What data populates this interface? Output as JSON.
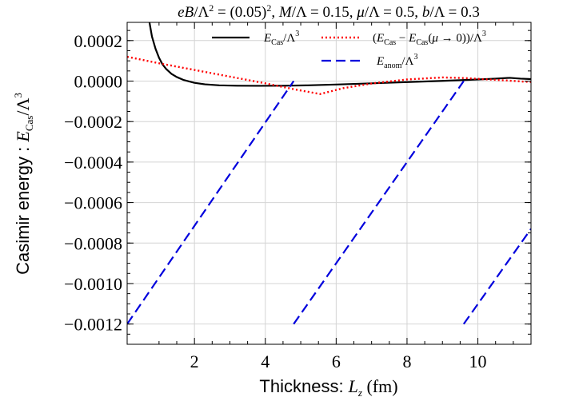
{
  "chart_data": {
    "type": "line",
    "title": "eB/Λ² = (0.05)², M/Λ = 0.15, μ/Λ = 0.5, b/Λ = 0.3",
    "xlabel": "Thickness: L_z (fm)",
    "ylabel": "Casimir energy : E_Cas/Λ³",
    "xlim": [
      0.1,
      11.5
    ],
    "ylim": [
      -0.0013,
      0.00029
    ],
    "xticks": [
      2,
      4,
      6,
      8,
      10
    ],
    "xtick_labels": [
      "2",
      "4",
      "6",
      "8",
      "10"
    ],
    "yticks": [
      0.0002,
      0.0,
      -0.0002,
      -0.0004,
      -0.0006,
      -0.0008,
      -0.001,
      -0.0012
    ],
    "ytick_labels": [
      "0.0002",
      "0.0000",
      "−0.0002",
      "−0.0004",
      "−0.0006",
      "−0.0008",
      "−0.0010",
      "−0.0012"
    ],
    "grid": true,
    "legend_position": "top-right",
    "series": [
      {
        "name": "E_Cas/Λ³",
        "color": "#000000",
        "style": "solid",
        "x": [
          0.73,
          0.8,
          0.9,
          1.0,
          1.1,
          1.2,
          1.35,
          1.5,
          1.7,
          2.0,
          2.3,
          2.7,
          3.2,
          3.8,
          4.5,
          5.2,
          6.0,
          7.0,
          8.0,
          9.0,
          10.0,
          10.5,
          10.9,
          11.2,
          11.5
        ],
        "y": [
          0.00029,
          0.00022,
          0.00016,
          0.000115,
          8.2e-05,
          6e-05,
          3.6e-05,
          2e-05,
          5e-06,
          -8.5e-06,
          -1.6e-05,
          -2.1e-05,
          -2.3e-05,
          -2.35e-05,
          -2.3e-05,
          -2.1e-05,
          -1.7e-05,
          -1.1e-05,
          -5e-06,
          1e-06,
          8e-06,
          1.2e-05,
          1.6e-05,
          1.2e-05,
          1e-05
        ]
      },
      {
        "name": "(E_Cas − E_Cas(μ → 0))/Λ³",
        "color": "#ff0000",
        "style": "dotted",
        "x": [
          0.1,
          1.0,
          2.0,
          3.0,
          4.0,
          4.8,
          5.55,
          6.2,
          7.0,
          8.0,
          9.0,
          9.6,
          10.3,
          10.9,
          11.5
        ],
        "y": [
          0.00012,
          8.8e-05,
          5.5e-05,
          2.2e-05,
          -1.1e-05,
          -4e-05,
          -6.4e-05,
          -3.5e-05,
          -1.2e-05,
          8e-06,
          1.8e-05,
          1.5e-05,
          8e-06,
          2e-06,
          -5e-06
        ]
      },
      {
        "name": "E_anom/Λ³",
        "color": "#0000dd",
        "style": "dashed",
        "segments": [
          {
            "x": [
              0.1,
              4.8
            ],
            "y": [
              -0.0012,
              0.0
            ]
          },
          {
            "x": [
              4.8,
              9.6
            ],
            "y": [
              -0.0012,
              0.0
            ]
          },
          {
            "x": [
              9.6,
              11.5
            ],
            "y": [
              -0.0012,
              -0.00073
            ]
          }
        ]
      }
    ]
  }
}
